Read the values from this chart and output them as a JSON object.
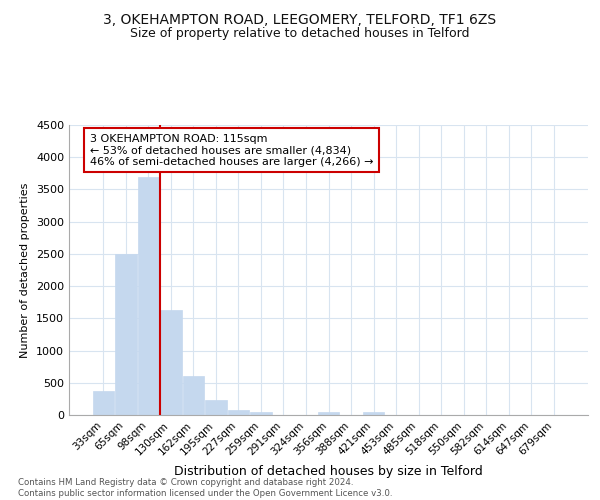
{
  "title1": "3, OKEHAMPTON ROAD, LEEGOMERY, TELFORD, TF1 6ZS",
  "title2": "Size of property relative to detached houses in Telford",
  "xlabel": "Distribution of detached houses by size in Telford",
  "ylabel": "Number of detached properties",
  "categories": [
    "33sqm",
    "65sqm",
    "98sqm",
    "130sqm",
    "162sqm",
    "195sqm",
    "227sqm",
    "259sqm",
    "291sqm",
    "324sqm",
    "356sqm",
    "388sqm",
    "421sqm",
    "453sqm",
    "485sqm",
    "518sqm",
    "550sqm",
    "582sqm",
    "614sqm",
    "647sqm",
    "679sqm"
  ],
  "values": [
    380,
    2500,
    3700,
    1630,
    600,
    240,
    80,
    50,
    0,
    0,
    50,
    0,
    50,
    0,
    0,
    0,
    0,
    0,
    0,
    0,
    0
  ],
  "bar_color": "#c5d8ee",
  "vline_x": 2.5,
  "vline_color": "#cc0000",
  "annotation_text": "3 OKEHAMPTON ROAD: 115sqm\n← 53% of detached houses are smaller (4,834)\n46% of semi-detached houses are larger (4,266) →",
  "annotation_box_color": "#cc0000",
  "footnote": "Contains HM Land Registry data © Crown copyright and database right 2024.\nContains public sector information licensed under the Open Government Licence v3.0.",
  "ylim": [
    0,
    4500
  ],
  "yticks": [
    0,
    500,
    1000,
    1500,
    2000,
    2500,
    3000,
    3500,
    4000,
    4500
  ],
  "bg_color": "#ffffff",
  "grid_color": "#d8e4f0",
  "title1_fontsize": 10,
  "title2_fontsize": 9
}
